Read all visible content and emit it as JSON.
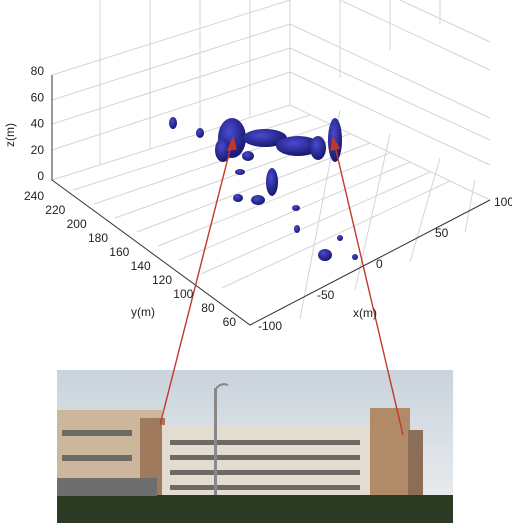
{
  "plot": {
    "z_label": "z(m)",
    "y_label": "y(m)",
    "x_label": "x(m)",
    "z_ticks": [
      "0",
      "20",
      "40",
      "60",
      "80"
    ],
    "y_ticks": [
      "60",
      "80",
      "100",
      "120",
      "140",
      "160",
      "180",
      "200",
      "220",
      "240"
    ],
    "x_ticks": [
      "-100",
      "-50",
      "0",
      "50",
      "100"
    ]
  }
}
